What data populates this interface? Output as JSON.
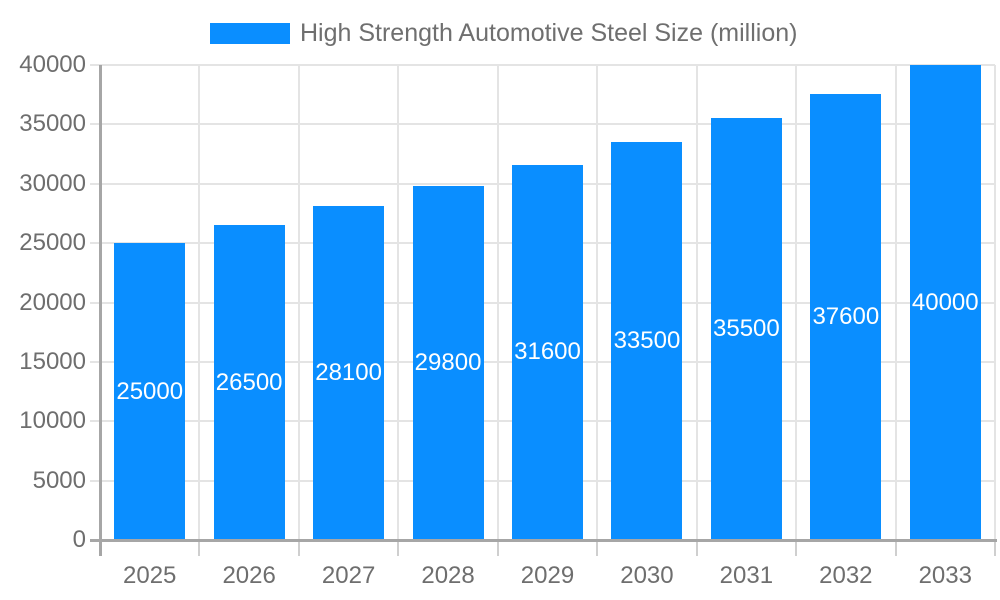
{
  "chart_data": {
    "type": "bar",
    "title": "High Strength Automotive Steel Size (million)",
    "categories": [
      "2025",
      "2026",
      "2027",
      "2028",
      "2029",
      "2030",
      "2031",
      "2032",
      "2033"
    ],
    "values": [
      25000,
      26500,
      28100,
      29800,
      31600,
      33500,
      35500,
      37600,
      40000
    ],
    "xlabel": "",
    "ylabel": "",
    "ylim": [
      0,
      40000
    ],
    "yticks": [
      0,
      5000,
      10000,
      15000,
      20000,
      25000,
      30000,
      35000,
      40000
    ],
    "grid": true,
    "legend_position": "top",
    "bar_label_position": "inside-center",
    "colors": {
      "bar": "#0a8eff",
      "grid": "#e4e4e4",
      "tick": "#cfcfcf",
      "axis": "#a6a6a6",
      "text": "#6e6e6e",
      "value_text": "#ffffff",
      "background": "#ffffff"
    }
  }
}
